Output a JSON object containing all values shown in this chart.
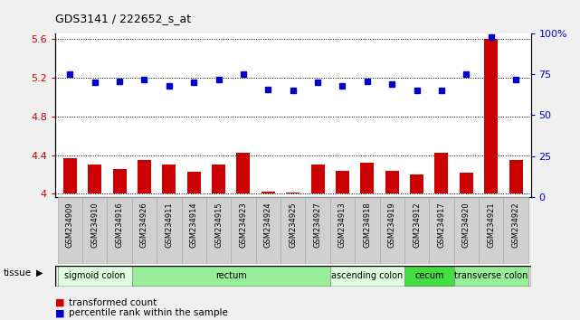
{
  "title": "GDS3141 / 222652_s_at",
  "samples": [
    "GSM234909",
    "GSM234910",
    "GSM234916",
    "GSM234926",
    "GSM234911",
    "GSM234914",
    "GSM234915",
    "GSM234923",
    "GSM234924",
    "GSM234925",
    "GSM234927",
    "GSM234913",
    "GSM234918",
    "GSM234919",
    "GSM234912",
    "GSM234917",
    "GSM234920",
    "GSM234921",
    "GSM234922"
  ],
  "transformed_count": [
    4.37,
    4.3,
    4.26,
    4.35,
    4.3,
    4.23,
    4.3,
    4.42,
    4.02,
    4.01,
    4.3,
    4.24,
    4.32,
    4.24,
    4.2,
    4.42,
    4.22,
    5.6,
    4.35
  ],
  "percentile_rank": [
    75,
    70,
    71,
    72,
    68,
    70,
    72,
    75,
    66,
    65,
    70,
    68,
    71,
    69,
    65,
    65,
    75,
    98,
    72
  ],
  "bar_color": "#cc0000",
  "dot_color": "#0000cc",
  "ylim_left": [
    3.97,
    5.65
  ],
  "ylim_right": [
    0,
    100
  ],
  "yticks_left": [
    4.0,
    4.4,
    4.8,
    5.2,
    5.6
  ],
  "ytick_labels_left": [
    "4",
    "4.4",
    "4.8",
    "5.2",
    "5.6"
  ],
  "yticks_right": [
    0,
    25,
    50,
    75,
    100
  ],
  "ytick_labels_right": [
    "0",
    "25",
    "50",
    "75",
    "100%"
  ],
  "tissue_groups": [
    {
      "label": "sigmoid colon",
      "start": 0,
      "end": 3,
      "color": "#ddffdd"
    },
    {
      "label": "rectum",
      "start": 3,
      "end": 11,
      "color": "#99ee99"
    },
    {
      "label": "ascending colon",
      "start": 11,
      "end": 14,
      "color": "#ddffdd"
    },
    {
      "label": "cecum",
      "start": 14,
      "end": 16,
      "color": "#44dd44"
    },
    {
      "label": "transverse colon",
      "start": 16,
      "end": 19,
      "color": "#99ee99"
    }
  ],
  "tissue_label": "tissue",
  "legend_bar_label": "transformed count",
  "legend_dot_label": "percentile rank within the sample",
  "background_color": "#f0f0f0",
  "plot_bg": "#ffffff",
  "grid_color": "#000000",
  "bar_width": 0.55,
  "bar_bottom": 4.0
}
